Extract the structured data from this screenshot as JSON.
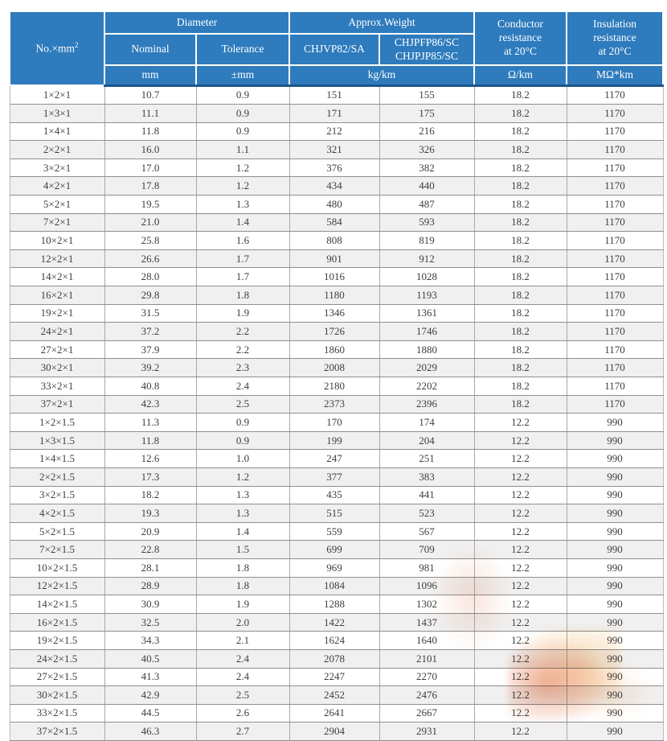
{
  "table": {
    "header": {
      "col_no": "No.×mm",
      "col_no_sup": "2",
      "diameter": "Diameter",
      "approx_weight": "Approx.Weight",
      "nominal": "Nominal",
      "tolerance": "Tolerance",
      "weight_col1": "CHJVP82/SA",
      "weight_col2_line1": "CHJPFP86/SC",
      "weight_col2_line2": "CHJPJP85/SC",
      "conductor": {
        "l1": "Conductor",
        "l2": "resistance",
        "l3": "at 20°C"
      },
      "insulation": {
        "l1": "Insulation",
        "l2": "resistance",
        "l3": "at 20°C"
      },
      "units": {
        "mm": "mm",
        "pmm": "±mm",
        "kgkm": "kg/km",
        "ohmkm": "Ω/km",
        "mohmkm": "MΩ*km"
      }
    },
    "columns": [
      "size",
      "nominal_diameter_mm",
      "tolerance_mm",
      "weight_chjvp82_sa_kg_km",
      "weight_chjpfp86_chjpjp85_kg_km",
      "conductor_resistance_ohm_km",
      "insulation_resistance_mohm_km"
    ],
    "rows": [
      [
        "1×2×1",
        "10.7",
        "0.9",
        "151",
        "155",
        "18.2",
        "1170"
      ],
      [
        "1×3×1",
        "11.1",
        "0.9",
        "171",
        "175",
        "18.2",
        "1170"
      ],
      [
        "1×4×1",
        "11.8",
        "0.9",
        "212",
        "216",
        "18.2",
        "1170"
      ],
      [
        "2×2×1",
        "16.0",
        "1.1",
        "321",
        "326",
        "18.2",
        "1170"
      ],
      [
        "3×2×1",
        "17.0",
        "1.2",
        "376",
        "382",
        "18.2",
        "1170"
      ],
      [
        "4×2×1",
        "17.8",
        "1.2",
        "434",
        "440",
        "18.2",
        "1170"
      ],
      [
        "5×2×1",
        "19.5",
        "1.3",
        "480",
        "487",
        "18.2",
        "1170"
      ],
      [
        "7×2×1",
        "21.0",
        "1.4",
        "584",
        "593",
        "18.2",
        "1170"
      ],
      [
        "10×2×1",
        "25.8",
        "1.6",
        "808",
        "819",
        "18.2",
        "1170"
      ],
      [
        "12×2×1",
        "26.6",
        "1.7",
        "901",
        "912",
        "18.2",
        "1170"
      ],
      [
        "14×2×1",
        "28.0",
        "1.7",
        "1016",
        "1028",
        "18.2",
        "1170"
      ],
      [
        "16×2×1",
        "29.8",
        "1.8",
        "1180",
        "1193",
        "18.2",
        "1170"
      ],
      [
        "19×2×1",
        "31.5",
        "1.9",
        "1346",
        "1361",
        "18.2",
        "1170"
      ],
      [
        "24×2×1",
        "37.2",
        "2.2",
        "1726",
        "1746",
        "18.2",
        "1170"
      ],
      [
        "27×2×1",
        "37.9",
        "2.2",
        "1860",
        "1880",
        "18.2",
        "1170"
      ],
      [
        "30×2×1",
        "39.2",
        "2.3",
        "2008",
        "2029",
        "18.2",
        "1170"
      ],
      [
        "33×2×1",
        "40.8",
        "2.4",
        "2180",
        "2202",
        "18.2",
        "1170"
      ],
      [
        "37×2×1",
        "42.3",
        "2.5",
        "2373",
        "2396",
        "18.2",
        "1170"
      ],
      [
        "1×2×1.5",
        "11.3",
        "0.9",
        "170",
        "174",
        "12.2",
        "990"
      ],
      [
        "1×3×1.5",
        "11.8",
        "0.9",
        "199",
        "204",
        "12.2",
        "990"
      ],
      [
        "1×4×1.5",
        "12.6",
        "1.0",
        "247",
        "251",
        "12.2",
        "990"
      ],
      [
        "2×2×1.5",
        "17.3",
        "1.2",
        "377",
        "383",
        "12.2",
        "990"
      ],
      [
        "3×2×1.5",
        "18.2",
        "1.3",
        "435",
        "441",
        "12.2",
        "990"
      ],
      [
        "4×2×1.5",
        "19.3",
        "1.3",
        "515",
        "523",
        "12.2",
        "990"
      ],
      [
        "5×2×1.5",
        "20.9",
        "1.4",
        "559",
        "567",
        "12.2",
        "990"
      ],
      [
        "7×2×1.5",
        "22.8",
        "1.5",
        "699",
        "709",
        "12.2",
        "990"
      ],
      [
        "10×2×1.5",
        "28.1",
        "1.8",
        "969",
        "981",
        "12.2",
        "990"
      ],
      [
        "12×2×1.5",
        "28.9",
        "1.8",
        "1084",
        "1096",
        "12.2",
        "990"
      ],
      [
        "14×2×1.5",
        "30.9",
        "1.9",
        "1288",
        "1302",
        "12.2",
        "990"
      ],
      [
        "16×2×1.5",
        "32.5",
        "2.0",
        "1422",
        "1437",
        "12.2",
        "990"
      ],
      [
        "19×2×1.5",
        "34.3",
        "2.1",
        "1624",
        "1640",
        "12.2",
        "990"
      ],
      [
        "24×2×1.5",
        "40.5",
        "2.4",
        "2078",
        "2101",
        "12.2",
        "990"
      ],
      [
        "27×2×1.5",
        "41.3",
        "2.4",
        "2247",
        "2270",
        "12.2",
        "990"
      ],
      [
        "30×2×1.5",
        "42.9",
        "2.5",
        "2452",
        "2476",
        "12.2",
        "990"
      ],
      [
        "33×2×1.5",
        "44.5",
        "2.6",
        "2641",
        "2667",
        "12.2",
        "990"
      ],
      [
        "37×2×1.5",
        "46.3",
        "2.7",
        "2904",
        "2931",
        "12.2",
        "990"
      ]
    ]
  },
  "colors": {
    "header_background": "#2e7bbd",
    "header_text": "#ffffff",
    "header_bottom_rule": "#1d5588",
    "row_stripe": "#f0f0f0",
    "row_border": "#8f8f8f",
    "body_text": "#3e3e3e",
    "watermark_orange": "#dc5a2d"
  }
}
